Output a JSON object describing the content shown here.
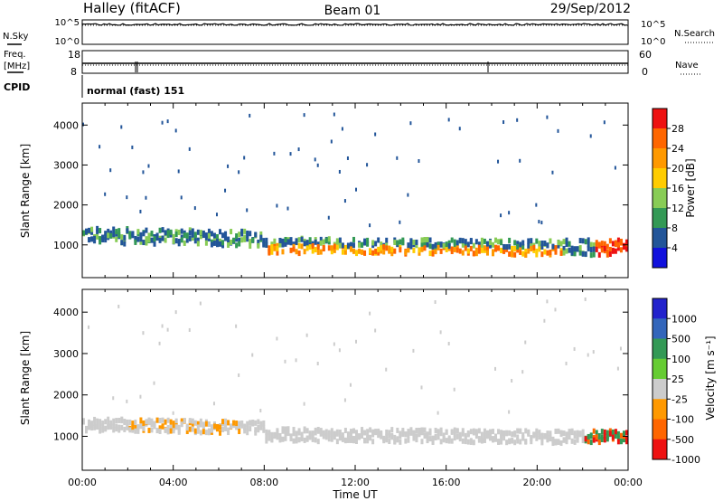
{
  "header": {
    "station": "Halley (fitACF)",
    "beam": "Beam 01",
    "date": "29/Sep/2012"
  },
  "noise_panel": {
    "left_label": "N.Sky",
    "left_ticks": [
      "10^5",
      "10^0"
    ],
    "right_label": "N.Search",
    "right_ticks": [
      "10^5",
      "10^0"
    ]
  },
  "freq_panel": {
    "left_label_line1": "Freq.",
    "left_label_line2": "[MHz]",
    "left_ticks": [
      "18",
      "8"
    ],
    "right_label": "Nave",
    "right_ticks": [
      "60",
      "0"
    ]
  },
  "cpid": {
    "label": "CPID",
    "program": "normal (fast) 151"
  },
  "chart_data": [
    {
      "type": "heatmap",
      "name": "power",
      "ylabel": "Slant Range [km]",
      "yticks": [
        1000,
        2000,
        3000,
        4000
      ],
      "ylim": [
        180,
        4550
      ],
      "xlim": [
        0,
        24
      ],
      "colorbar": {
        "label": "Power [dB]",
        "ticks": [
          "28",
          "24",
          "20",
          "16",
          "12",
          "8",
          "4"
        ],
        "colors": [
          "#ee1111",
          "#ff6600",
          "#ff9900",
          "#ffcc00",
          "#88cc55",
          "#339955",
          "#225599",
          "#1111dd"
        ]
      },
      "features": [
        {
          "component": "main_band_near",
          "x_range": [
            0,
            24
          ],
          "range_km": [
            1000,
            1450
          ],
          "power_db": [
            8,
            14
          ]
        },
        {
          "component": "main_band_far",
          "x_range": [
            8,
            21
          ],
          "range_km": [
            800,
            1150
          ],
          "power_db": [
            16,
            24
          ]
        },
        {
          "component": "sporadic_backscatter",
          "x_range": [
            0,
            24
          ],
          "range_km": [
            1500,
            4500
          ],
          "power_db": [
            4,
            8
          ]
        },
        {
          "component": "strong_echoes_end",
          "x_range": [
            22.5,
            24
          ],
          "range_km": [
            700,
            1300
          ],
          "power_db": [
            24,
            30
          ]
        }
      ]
    },
    {
      "type": "heatmap",
      "name": "velocity",
      "ylabel": "Slant Range [km]",
      "yticks": [
        1000,
        2000,
        3000,
        4000
      ],
      "ylim": [
        180,
        4550
      ],
      "xlim": [
        0,
        24
      ],
      "xlabel": "Time UT",
      "xticks": [
        "00:00",
        "04:00",
        "08:00",
        "12:00",
        "16:00",
        "20:00",
        "00:00"
      ],
      "colorbar": {
        "label": "Velocity [m s⁻¹]",
        "ticks": [
          "1000",
          "500",
          "100",
          "25",
          "-25",
          "-100",
          "-500",
          "-1000"
        ],
        "colors": [
          "#2222cc",
          "#3366bb",
          "#339955",
          "#66cc33",
          "#cccccc",
          "#ff9900",
          "#ff6600",
          "#ee1111"
        ]
      },
      "features": [
        {
          "component": "ground_scatter",
          "x_range": [
            0,
            22.5
          ],
          "range_km": [
            900,
            1400
          ],
          "velocity_ms": [
            -25,
            25
          ]
        },
        {
          "component": "negative_velocity_patches",
          "x_range": [
            2,
            7
          ],
          "range_km": [
            1100,
            1400
          ],
          "velocity_ms": [
            -500,
            -100
          ]
        },
        {
          "component": "strong_flows_end",
          "x_range": [
            22,
            24
          ],
          "range_km": [
            700,
            1600
          ],
          "velocity_ms": [
            -1000,
            1000
          ]
        }
      ]
    }
  ]
}
